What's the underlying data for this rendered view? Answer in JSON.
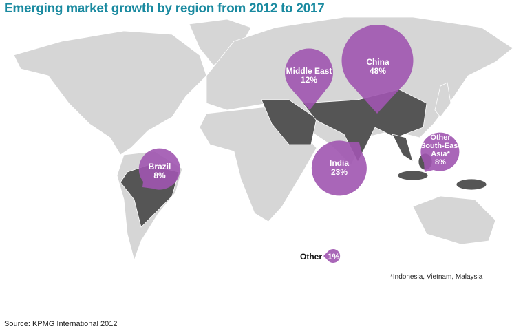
{
  "title": "Emerging market growth by region from 2012 to 2017",
  "colors": {
    "bubble": "#a055b0",
    "highlight": "#555555",
    "land": "#d6d6d6",
    "title": "#1a8aa0"
  },
  "regions": [
    {
      "name": "China",
      "value": "48%"
    },
    {
      "name": "Middle East",
      "value": "12%"
    },
    {
      "name": "India",
      "value": "23%"
    },
    {
      "name": "Brazil",
      "value": "8%"
    },
    {
      "name": "Other South-East Asia*",
      "value": "8%"
    },
    {
      "name": "Other",
      "value": "1%"
    }
  ],
  "footnote": "*Indonesia, Vietnam, Malaysia",
  "source": "Source: KPMG International 2012"
}
